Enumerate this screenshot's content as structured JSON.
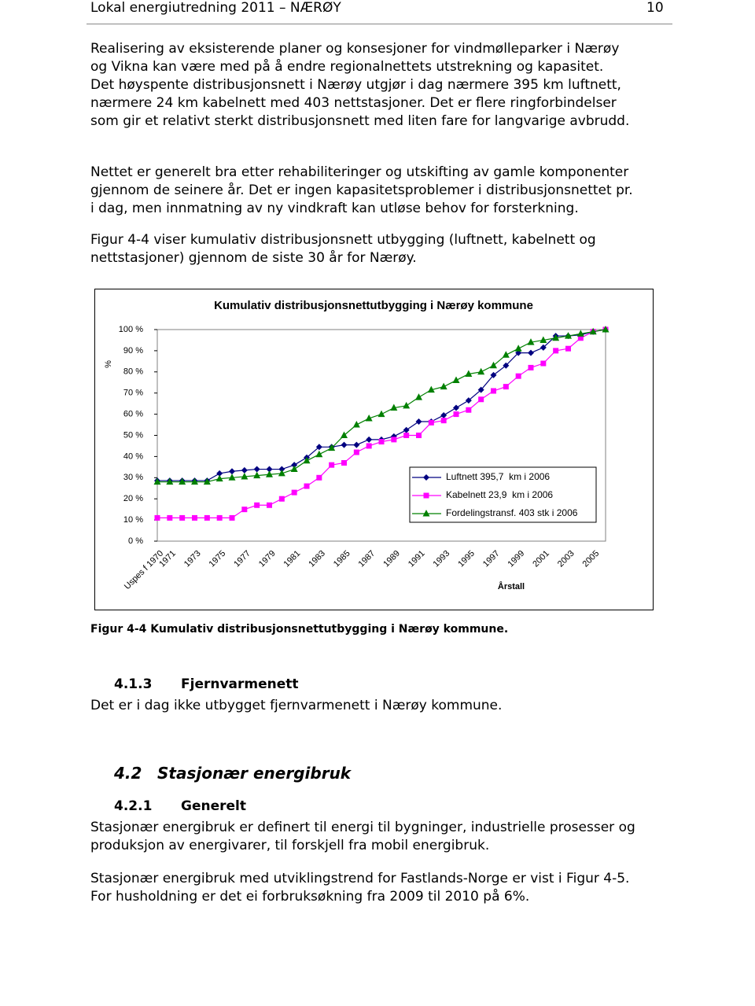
{
  "header": {
    "title": "Lokal energiutredning 2011 – NÆRØY",
    "page": "10"
  },
  "paragraphs": [
    {
      "lines": [
        "Realisering av eksisterende planer og konsesjoner for vindmølleparker i Nærøy",
        "og Vikna kan være med på å endre regionalnettets utstrekning og kapasitet.",
        "Det høyspente distribusjonsnett i Nærøy utgjør i dag nærmere 395 km luftnett,",
        "nærmere 24 km kabelnett med 403 nettstasjoner. Det er flere ringforbindelser",
        "som gir et relativt sterkt distribusjonsnett med liten fare for langvarige avbrudd."
      ]
    },
    {
      "lines": [
        "Nettet er generelt bra etter rehabiliteringer og utskifting av gamle komponenter",
        "gjennom de seinere år. Det er ingen kapasitetsproblemer i distribusjonsnettet pr.",
        "i dag, men innmatning av ny vindkraft kan utløse behov for forsterkning."
      ]
    },
    {
      "lines": [
        "Figur 4-4 viser kumulativ distribusjonsnett utbygging (luftnett, kabelnett og",
        "nettstasjoner) gjennom de siste 30 år for Nærøy."
      ]
    }
  ],
  "chart_data": {
    "type": "line",
    "title": "Kumulativ distribusjonsnettutbygging i Nærøy kommune",
    "y_label": "%",
    "x_label": "Årstall",
    "categories": [
      "Uspes f 1970",
      "1971",
      null,
      "1973",
      null,
      "1975",
      null,
      "1977",
      null,
      "1979",
      null,
      "1981",
      null,
      "1983",
      null,
      "1985",
      null,
      "1987",
      null,
      "1989",
      null,
      "1991",
      null,
      "1993",
      null,
      "1995",
      null,
      "1997",
      null,
      "1999",
      null,
      "2001",
      null,
      "2003",
      null,
      "2005",
      null
    ],
    "series": [
      {
        "name": "Luftnett 395,7  km i 2006",
        "color": "#000080",
        "marker": "diamond",
        "values": [
          28.6,
          28.6,
          28.6,
          28.6,
          28.6,
          32,
          33,
          33.5,
          34,
          34,
          34,
          36,
          39.5,
          44.5,
          44.5,
          45.5,
          45.5,
          48,
          48,
          49.5,
          52.5,
          56.5,
          56.5,
          59.5,
          63,
          66.5,
          71.5,
          78.5,
          83,
          89,
          89,
          91.5,
          97,
          97,
          97.5,
          99,
          100
        ]
      },
      {
        "name": "Kabelnett 23,9  km i 2006",
        "color": "#ff00ff",
        "marker": "square",
        "values": [
          11,
          11,
          11,
          11,
          11,
          11,
          11,
          15,
          17,
          17,
          20,
          23,
          26,
          30,
          36,
          37,
          42,
          45,
          47,
          48,
          50,
          50,
          56,
          57,
          60,
          62,
          67,
          71,
          73,
          78,
          82,
          84,
          90,
          91,
          96,
          99,
          100
        ]
      },
      {
        "name": "Fordelingstransf. 403 stk i 2006",
        "color": "#008000",
        "marker": "triangle",
        "values": [
          28,
          28,
          28,
          28,
          28,
          29.5,
          30,
          30.5,
          31,
          31.5,
          32,
          34,
          38,
          41,
          44,
          50,
          55,
          58,
          60,
          63,
          64,
          68,
          71.5,
          73,
          76,
          79,
          80,
          83,
          88,
          91,
          94,
          95,
          96,
          97,
          98,
          99,
          100
        ]
      }
    ],
    "ylim": [
      0,
      100
    ],
    "yticks": [
      {
        "value": 0,
        "label": "0 %"
      },
      {
        "value": 10,
        "label": "10 %"
      },
      {
        "value": 20,
        "label": "20 %"
      },
      {
        "value": 30,
        "label": "30 %"
      },
      {
        "value": 40,
        "label": "40 %"
      },
      {
        "value": 50,
        "label": "50 %"
      },
      {
        "value": 60,
        "label": "60 %"
      },
      {
        "value": 70,
        "label": "70 %"
      },
      {
        "value": 80,
        "label": "80 %"
      },
      {
        "value": 90,
        "label": "90 %"
      },
      {
        "value": 100,
        "label": "100 %"
      }
    ],
    "grid": false,
    "legend": "lower right"
  },
  "caption": "Figur 4-4 Kumulativ distribusjonsnettutbygging i Nærøy kommune.",
  "section_413": {
    "number": "4.1.3",
    "title": "Fjernvarmenett",
    "text": "Det er i dag ikke utbygget fjernvarmenett i Nærøy kommune."
  },
  "section_42": {
    "number": "4.2",
    "title": "Stasjonær energibruk"
  },
  "section_421": {
    "number": "4.2.1",
    "title": "Generelt",
    "paragraphs": [
      {
        "lines": [
          "Stasjonær energibruk er definert til energi til bygninger, industrielle prosesser og",
          "produksjon av energivarer, til forskjell fra mobil energibruk."
        ]
      },
      {
        "lines": [
          "Stasjonær energibruk med utviklingstrend for Fastlands-Norge er vist i Figur 4-5.",
          "For husholdning er det ei forbruksøkning fra 2009 til 2010 på 6%."
        ]
      }
    ]
  }
}
